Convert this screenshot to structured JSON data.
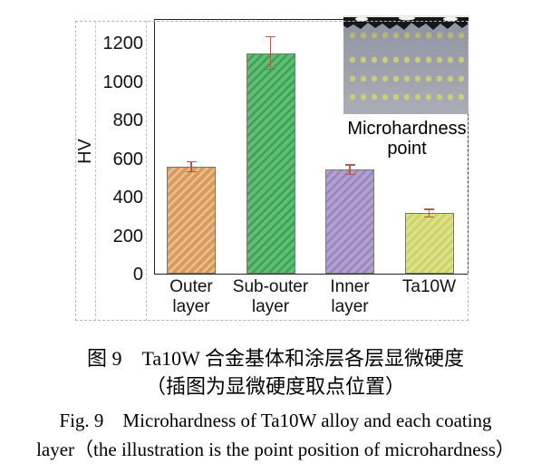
{
  "figure": {
    "inset_label_line1": "Microhardness",
    "inset_label_line2": "point"
  },
  "chart_data": {
    "type": "bar",
    "categories": [
      "Outer\nlayer",
      "Sub-outer\nlayer",
      "Inner\nlayer",
      "Ta10W"
    ],
    "values": [
      560,
      1150,
      545,
      320
    ],
    "errors": [
      25,
      85,
      25,
      20
    ],
    "title": "",
    "xlabel": "",
    "ylabel": "HV",
    "yticks": [
      0,
      200,
      400,
      600,
      800,
      1000,
      1200
    ],
    "ylim": [
      0,
      1330
    ],
    "grid": false,
    "legend": null,
    "bar_colors": [
      "#d89a5f",
      "#5fbe73",
      "#b2a0ce",
      "#dce089"
    ],
    "bar_stripe_colors": [
      "#ecbf8b",
      "#3da055",
      "#9b85bf",
      "#ccd165"
    ],
    "bar_border_color": "#7a7668",
    "error_bar_color": "#b65a4e",
    "annotation": "Microhardness point"
  },
  "caption": {
    "zh_line1": "图 9　Ta10W 合金基体和涂层各层显微硬度",
    "zh_line2": "（插图为显微硬度取点位置）",
    "en_line1": "Fig. 9　Microhardness of Ta10W alloy and each coating",
    "en_line2": "layer（the illustration is the point position of microhardness）"
  }
}
